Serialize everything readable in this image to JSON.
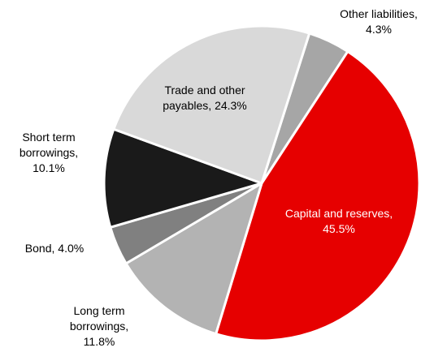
{
  "chart_data": {
    "type": "pie",
    "categories": [
      "Other liabilities",
      "Capital and reserves",
      "Long term borrowings",
      "Bond",
      "Short term borrowings",
      "Trade and other payables"
    ],
    "values": [
      4.3,
      45.5,
      11.8,
      4.0,
      10.1,
      24.3
    ],
    "value_labels": [
      "4.3%",
      "45.5%",
      "11.8%",
      "4.0%",
      "10.1%",
      "24.3%"
    ],
    "colors": [
      "#a6a6a6",
      "#e60000",
      "#b3b3b3",
      "#808080",
      "#1a1a1a",
      "#d9d9d9"
    ]
  }
}
